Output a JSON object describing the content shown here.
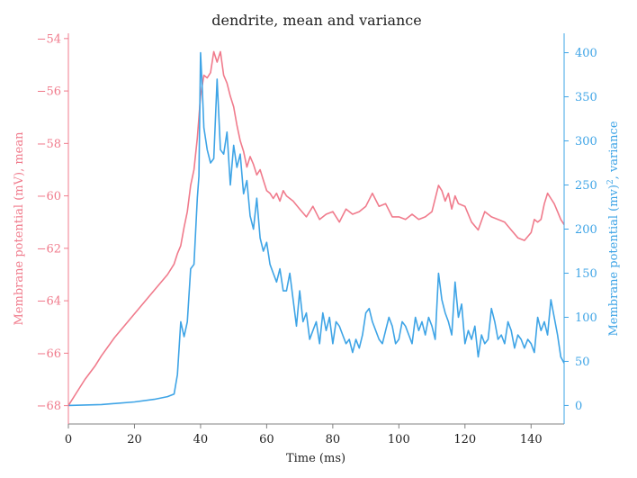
{
  "chart_data": {
    "type": "line",
    "title": "dendrite, mean and variance",
    "xlabel": "Time (ms)",
    "ylabel_left": "Membrane potential (mV), mean",
    "ylabel_right_prefix": "Membrane potential (mv)",
    "ylabel_right_sup": "2",
    "ylabel_right_suffix": ", variance",
    "xlim": [
      0,
      150
    ],
    "ylim_left": [
      -68.7,
      -53.8
    ],
    "ylim_right": [
      -21,
      422
    ],
    "x_ticks": [
      "0",
      "20",
      "40",
      "60",
      "80",
      "100",
      "120",
      "140"
    ],
    "y_ticks_left": [
      "−54",
      "−56",
      "−58",
      "−60",
      "−62",
      "−64",
      "−66",
      "−68"
    ],
    "y_ticks_right": [
      "400",
      "350",
      "300",
      "250",
      "200",
      "150",
      "100",
      "50",
      "0"
    ],
    "grid": false,
    "colors": {
      "left": "#f07b8c",
      "right": "#3ea4e6",
      "axis": "#808080",
      "text": "#222222"
    },
    "series": [
      {
        "axis": "left",
        "x": [
          0,
          2,
          5,
          8,
          10,
          14,
          18,
          22,
          26,
          30,
          32,
          33,
          34,
          35,
          36,
          37,
          38,
          39,
          40,
          41,
          42,
          43,
          44,
          45,
          46,
          47,
          48,
          49,
          50,
          51,
          52,
          53,
          54,
          55,
          56,
          57,
          58,
          59,
          60,
          61,
          62,
          63,
          64,
          65,
          66,
          67,
          68,
          70,
          72,
          74,
          76,
          78,
          80,
          82,
          84,
          86,
          88,
          90,
          92,
          94,
          96,
          98,
          100,
          102,
          104,
          106,
          108,
          110,
          112,
          113,
          114,
          115,
          116,
          117,
          118,
          120,
          122,
          124,
          126,
          128,
          130,
          132,
          134,
          136,
          138,
          140,
          141,
          142,
          143,
          144,
          145,
          146,
          147,
          148,
          149,
          150
        ],
        "y": [
          -68,
          -67.6,
          -67.0,
          -66.5,
          -66.1,
          -65.4,
          -64.8,
          -64.2,
          -63.6,
          -63.0,
          -62.6,
          -62.2,
          -61.9,
          -61.2,
          -60.6,
          -59.6,
          -59.0,
          -57.8,
          -56.2,
          -55.4,
          -55.5,
          -55.3,
          -54.5,
          -54.9,
          -54.5,
          -55.4,
          -55.7,
          -56.2,
          -56.6,
          -57.3,
          -57.9,
          -58.3,
          -58.9,
          -58.5,
          -58.8,
          -59.2,
          -59.0,
          -59.4,
          -59.8,
          -59.9,
          -60.1,
          -59.9,
          -60.2,
          -59.8,
          -60.0,
          -60.1,
          -60.2,
          -60.5,
          -60.8,
          -60.4,
          -60.9,
          -60.7,
          -60.6,
          -61.0,
          -60.5,
          -60.7,
          -60.6,
          -60.4,
          -59.9,
          -60.4,
          -60.3,
          -60.8,
          -60.8,
          -60.9,
          -60.7,
          -60.9,
          -60.8,
          -60.6,
          -59.6,
          -59.8,
          -60.2,
          -59.9,
          -60.5,
          -60.0,
          -60.3,
          -60.4,
          -61.0,
          -61.3,
          -60.6,
          -60.8,
          -60.9,
          -61.0,
          -61.3,
          -61.6,
          -61.7,
          -61.4,
          -60.9,
          -61.0,
          -60.9,
          -60.3,
          -59.9,
          -60.1,
          -60.3,
          -60.6,
          -60.9,
          -61.1
        ]
      },
      {
        "axis": "right",
        "x": [
          0,
          10,
          20,
          26,
          30,
          32,
          33,
          34,
          35,
          36,
          37,
          38,
          39,
          39.5,
          40,
          40.5,
          41,
          42,
          43,
          44,
          45,
          46,
          47,
          48,
          49,
          50,
          51,
          52,
          53,
          54,
          55,
          56,
          57,
          58,
          59,
          60,
          61,
          62,
          63,
          64,
          65,
          66,
          67,
          68,
          69,
          70,
          71,
          72,
          73,
          74,
          75,
          76,
          77,
          78,
          79,
          80,
          81,
          82,
          83,
          84,
          85,
          86,
          87,
          88,
          89,
          90,
          91,
          92,
          93,
          94,
          95,
          96,
          97,
          98,
          99,
          100,
          101,
          102,
          103,
          104,
          105,
          106,
          107,
          108,
          109,
          110,
          111,
          112,
          113,
          114,
          115,
          116,
          117,
          118,
          119,
          120,
          121,
          122,
          123,
          124,
          125,
          126,
          127,
          128,
          129,
          130,
          131,
          132,
          133,
          134,
          135,
          136,
          137,
          138,
          139,
          140,
          141,
          142,
          143,
          144,
          145,
          146,
          147,
          148,
          149,
          150
        ],
        "y": [
          0,
          1,
          4,
          7,
          10,
          13,
          35,
          95,
          78,
          95,
          155,
          160,
          235,
          260,
          400,
          360,
          315,
          290,
          275,
          280,
          370,
          290,
          285,
          310,
          250,
          295,
          270,
          285,
          240,
          255,
          215,
          200,
          235,
          190,
          175,
          185,
          160,
          150,
          140,
          155,
          130,
          130,
          150,
          120,
          90,
          130,
          95,
          105,
          75,
          85,
          95,
          70,
          105,
          85,
          100,
          70,
          95,
          90,
          80,
          70,
          75,
          60,
          75,
          65,
          80,
          105,
          110,
          95,
          85,
          75,
          70,
          85,
          100,
          90,
          70,
          75,
          95,
          90,
          80,
          70,
          100,
          85,
          95,
          80,
          100,
          90,
          75,
          150,
          120,
          105,
          95,
          80,
          140,
          100,
          115,
          70,
          85,
          75,
          90,
          55,
          80,
          70,
          75,
          110,
          95,
          75,
          80,
          70,
          95,
          85,
          65,
          80,
          75,
          65,
          75,
          70,
          60,
          100,
          85,
          95,
          80,
          120,
          100,
          80,
          55,
          48
        ]
      }
    ]
  }
}
